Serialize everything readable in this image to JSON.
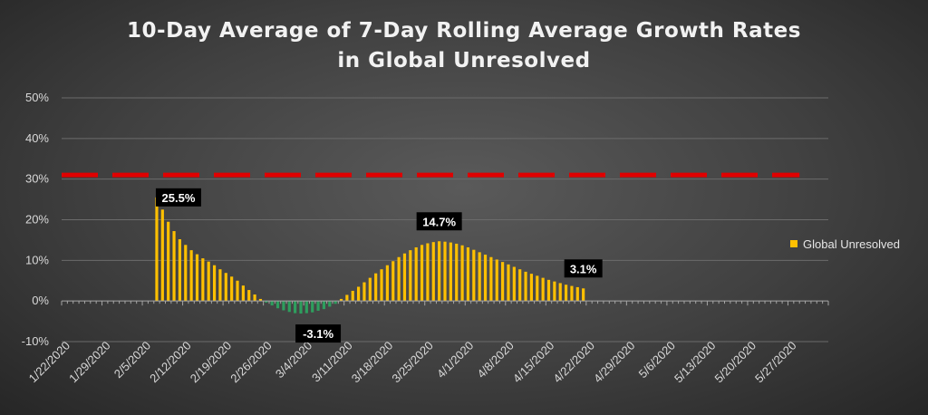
{
  "chart_data": {
    "type": "bar",
    "title_line1": "10-Day Average of 7-Day Rolling Average Growth Rates",
    "title_line2": "in Global Unresolved",
    "ylim": [
      -10,
      50
    ],
    "yticks": [
      -10,
      0,
      10,
      20,
      30,
      40,
      50
    ],
    "ytick_labels": [
      "-10%",
      "0%",
      "10%",
      "20%",
      "30%",
      "40%",
      "50%"
    ],
    "grid": true,
    "legend_position": "right",
    "reference_line": {
      "value": 31,
      "color": "#e00000",
      "style": "dashed",
      "start": "1/22/2020",
      "end": "5/29/2020"
    },
    "x_start": "1/22/2020",
    "x_end": "6/3/2020",
    "xtick_labels": [
      "1/22/2020",
      "1/29/2020",
      "2/5/2020",
      "2/12/2020",
      "2/19/2020",
      "2/26/2020",
      "3/4/2020",
      "3/11/2020",
      "3/18/2020",
      "3/25/2020",
      "4/1/2020",
      "4/8/2020",
      "4/15/2020",
      "4/22/2020",
      "4/29/2020",
      "5/6/2020",
      "5/13/2020",
      "5/20/2020",
      "5/27/2020"
    ],
    "positive_color": "#ffc000",
    "negative_color": "#2e9e5e",
    "series": [
      {
        "name": "Global Unresolved",
        "x_first": "2/7/2020",
        "values": [
          25.5,
          22.5,
          19.5,
          17.2,
          15.2,
          13.8,
          12.5,
          11.5,
          10.5,
          9.7,
          8.8,
          7.8,
          6.9,
          6.0,
          5.0,
          3.8,
          2.7,
          1.6,
          0.5,
          -0.4,
          -1.1,
          -1.8,
          -2.3,
          -2.7,
          -3.0,
          -3.1,
          -3.0,
          -2.8,
          -2.4,
          -2.0,
          -1.4,
          -0.7,
          0.5,
          1.5,
          2.5,
          3.5,
          4.6,
          5.7,
          6.8,
          7.8,
          8.8,
          9.8,
          10.8,
          11.7,
          12.5,
          13.2,
          13.8,
          14.2,
          14.5,
          14.7,
          14.6,
          14.4,
          14.1,
          13.7,
          13.2,
          12.6,
          12.0,
          11.4,
          10.8,
          10.2,
          9.6,
          9.0,
          8.4,
          7.8,
          7.2,
          6.7,
          6.2,
          5.7,
          5.2,
          4.8,
          4.4,
          4.0,
          3.7,
          3.4,
          3.1
        ]
      }
    ],
    "data_labels": [
      {
        "text": "25.5%",
        "date": "2/7/2020",
        "value": 25.5
      },
      {
        "text": "-3.1%",
        "date": "3/6/2020",
        "value": -3.1
      },
      {
        "text": "14.7%",
        "date": "3/27/2020",
        "value": 14.7
      },
      {
        "text": "3.1%",
        "date": "4/21/2020",
        "value": 3.1
      }
    ],
    "legend": [
      {
        "label": "Global Unresolved",
        "color": "#ffc000"
      }
    ]
  }
}
